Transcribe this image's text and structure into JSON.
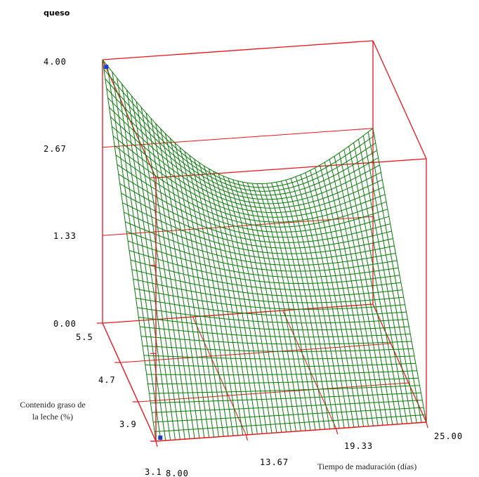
{
  "chart_data": {
    "type": "surface3d",
    "zlabel": "queso",
    "xlabel": "Tiempo de maduración (días)",
    "ylabel_lines": [
      "Contenido graso de",
      "la leche (%)"
    ],
    "x_ticks": [
      "8.00",
      "13.67",
      "19.33",
      "25.00"
    ],
    "y_ticks": [
      "3.1",
      "3.9",
      "4.7",
      "5.5"
    ],
    "z_ticks": [
      "0.00",
      "1.33",
      "2.67",
      "4.00"
    ],
    "x_range": [
      8.0,
      25.0
    ],
    "y_range": [
      3.1,
      5.5
    ],
    "z_range": [
      0.0,
      4.0
    ],
    "corners": [
      {
        "x": 8.0,
        "y": 3.1,
        "z": 0.0
      },
      {
        "x": 25.0,
        "y": 3.1,
        "z": 0.0
      },
      {
        "x": 8.0,
        "y": 5.5,
        "z": 4.0
      },
      {
        "x": 25.0,
        "y": 5.5,
        "z": 2.67
      }
    ],
    "grid": true,
    "colors": {
      "surface": "#0a7a0a",
      "box": "#e8141e",
      "marker": "#1a3fd0"
    }
  }
}
